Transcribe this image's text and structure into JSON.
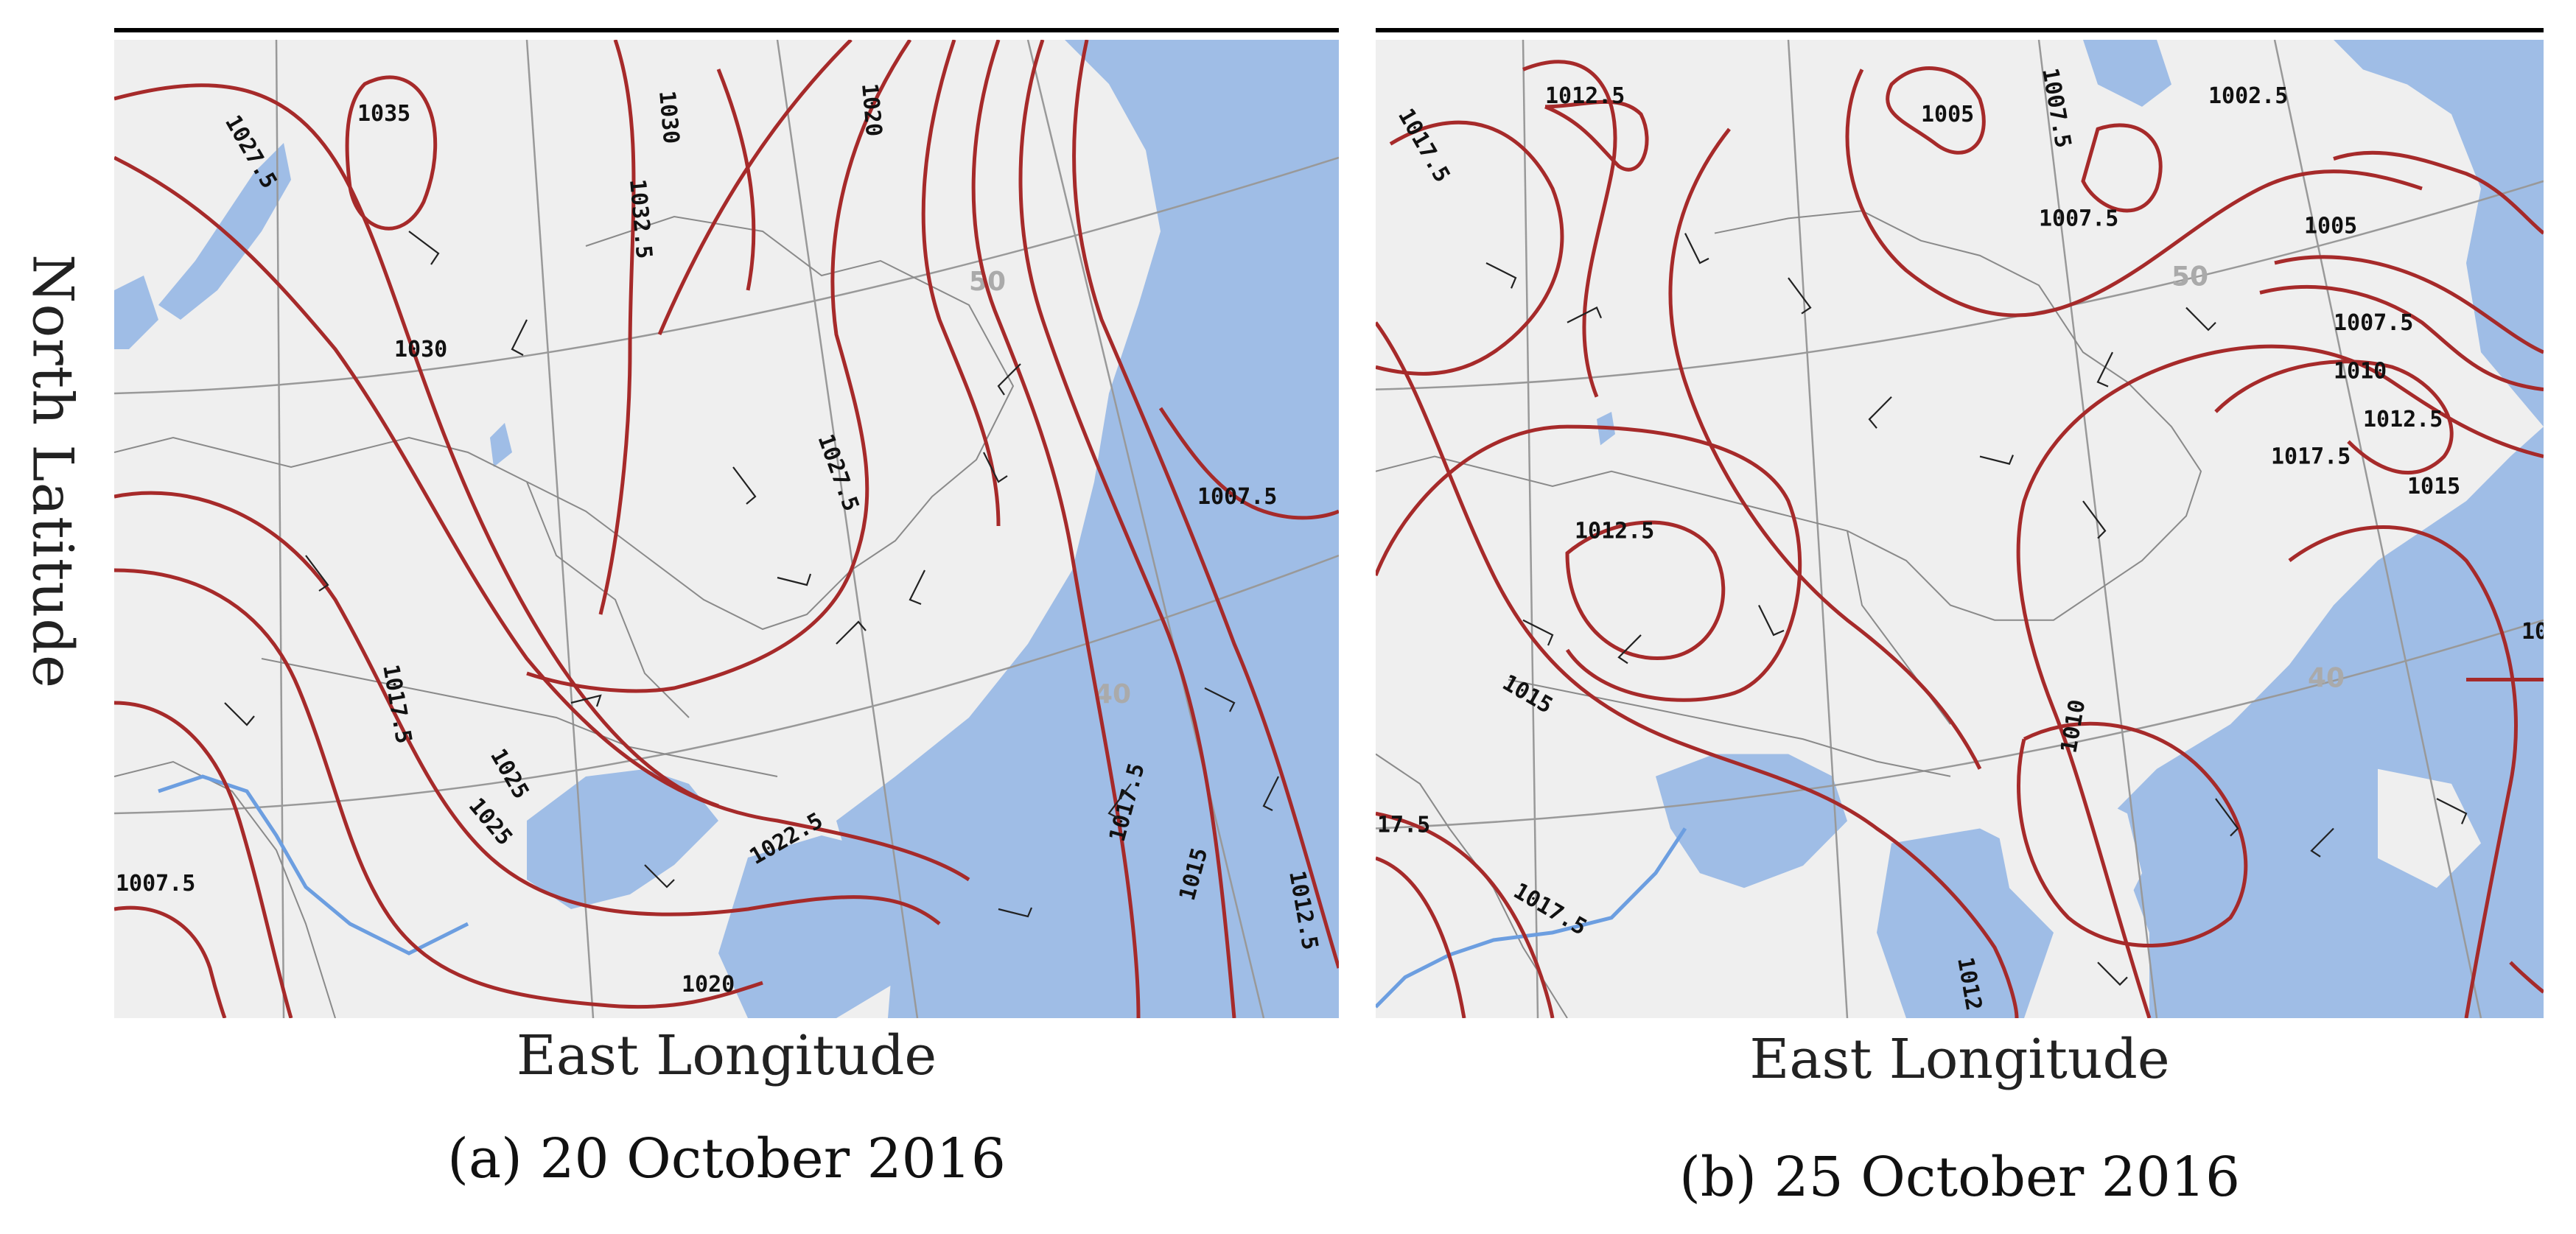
{
  "figure": {
    "y_axis_label": "North Latitude",
    "colors": {
      "isobar": "#a62a2a",
      "water": "#9fbde6",
      "land": "#efefef",
      "grid": "#999999",
      "river": "#6c9ee0"
    }
  },
  "panels": [
    {
      "x_axis_label": "East Longitude",
      "caption": "(a) 20 October 2016",
      "latitude_labels": [
        "50",
        "40"
      ],
      "isobar_labels": [
        "1027.5",
        "1035",
        "1030",
        "1032.5",
        "1030",
        "1025",
        "1020",
        "1027.5",
        "1017.5",
        "1025",
        "1022.5",
        "1020",
        "1017.5",
        "1015",
        "1012.5",
        "1007.5",
        "1007.5"
      ]
    },
    {
      "x_axis_label": "East Longitude",
      "caption": "(b) 25 October 2016",
      "latitude_labels": [
        "50",
        "40"
      ],
      "isobar_labels": [
        "1012.5",
        "1017.5",
        "1005",
        "1007.5",
        "1002.5",
        "1007.5",
        "1005",
        "1007.5",
        "1010",
        "1012.5",
        "1017.5",
        "1015",
        "1012.5",
        "1015",
        "1010",
        "17.5",
        "1017.5",
        "1012",
        "10"
      ]
    }
  ]
}
